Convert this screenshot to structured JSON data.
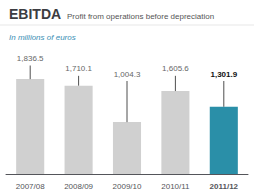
{
  "chart_data": {
    "type": "bar",
    "title": "EBITDA",
    "subtitle": "In millions of euros",
    "annotations": [
      "Profit from operations before depreciation"
    ],
    "categories": [
      "2007/08",
      "2008/09",
      "2009/10",
      "2010/11",
      "2011/12"
    ],
    "values": [
      1836.5,
      1710.1,
      1004.3,
      1605.6,
      1301.9
    ],
    "value_labels": [
      "1,836.5",
      "1,710.1",
      "1,004.3",
      "1,605.6",
      "1,301.9"
    ],
    "data_labels": true,
    "colors": [
      "#d0d0d0",
      "#d0d0d0",
      "#d0d0d0",
      "#d0d0d0",
      "#2a8fa8"
    ],
    "error_bars": {
      "low": [
        1836.5,
        1710.1,
        1004.3,
        1605.6,
        1301.9
      ],
      "high": [
        2100,
        1900,
        1800,
        1900,
        1800
      ]
    },
    "ylim": [
      0,
      2400
    ],
    "tick_labels": "x",
    "grid": false
  }
}
